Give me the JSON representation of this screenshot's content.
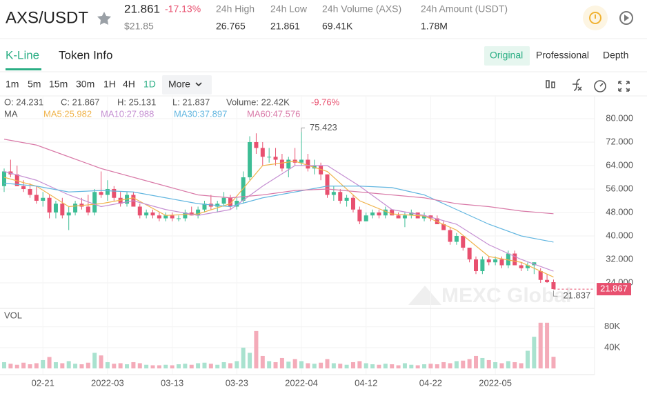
{
  "header": {
    "symbol": "AXS/USDT",
    "price": "21.861",
    "change": "-17.13%",
    "usd_price": "$21.85",
    "stats": [
      {
        "label": "24h High",
        "value": "26.765"
      },
      {
        "label": "24h Low",
        "value": "21.861"
      },
      {
        "label": "24h Volume (AXS)",
        "value": "69.41K"
      },
      {
        "label": "24h Amount (USDT)",
        "value": "1.78M"
      }
    ]
  },
  "tabs": [
    "K-Line",
    "Token Info"
  ],
  "views": [
    "Original",
    "Professional",
    "Depth"
  ],
  "intervals": [
    "1m",
    "5m",
    "15m",
    "30m",
    "1H",
    "4H",
    "1D"
  ],
  "more": "More",
  "chart_data": {
    "type": "candlestick",
    "info": [
      "O: 24.231",
      "C: 21.867",
      "H: 25.131",
      "L: 21.837",
      "Volume: 22.42K"
    ],
    "change_pct": "-9.76%",
    "ma_label": "MA",
    "vol_label": "VOL",
    "watermark": "MEXC Global",
    "up_color": "#3dbd95",
    "down_color": "#e8506f",
    "up_vol_color": "#a9e2cf",
    "down_vol_color": "#f4abb9",
    "categories": [
      null,
      null,
      null,
      null,
      null,
      null,
      "02-21",
      null,
      null,
      null,
      null,
      null,
      null,
      null,
      null,
      null,
      "2022-03",
      null,
      null,
      null,
      null,
      null,
      null,
      null,
      null,
      null,
      "03-13",
      null,
      null,
      null,
      null,
      null,
      null,
      null,
      null,
      null,
      "03-23",
      null,
      null,
      null,
      null,
      null,
      null,
      null,
      null,
      null,
      "2022-04",
      null,
      null,
      null,
      null,
      null,
      null,
      null,
      null,
      null,
      "04-12",
      null,
      null,
      null,
      null,
      null,
      null,
      null,
      null,
      null,
      "04-22",
      null,
      null,
      null,
      null,
      null,
      null,
      null,
      null,
      null,
      "2022-05",
      null,
      null,
      null,
      null,
      null,
      null,
      null,
      null,
      null
    ],
    "ohlc": [
      [
        57,
        63,
        55,
        62
      ],
      [
        62,
        66,
        60,
        61
      ],
      [
        61,
        64,
        57,
        57
      ],
      [
        57,
        59,
        55,
        56
      ],
      [
        56,
        58,
        53,
        54
      ],
      [
        54,
        57,
        51,
        52
      ],
      [
        52,
        55,
        50,
        53
      ],
      [
        53,
        54,
        46,
        48
      ],
      [
        48,
        52,
        46,
        51
      ],
      [
        51,
        53,
        46,
        47
      ],
      [
        47,
        50,
        42,
        48
      ],
      [
        48,
        52,
        47,
        51
      ],
      [
        51,
        53,
        49,
        50
      ],
      [
        50,
        54,
        47,
        48
      ],
      [
        48,
        56,
        47,
        55
      ],
      [
        55,
        62,
        53,
        54
      ],
      [
        54,
        59,
        52,
        56
      ],
      [
        56,
        57,
        52,
        53
      ],
      [
        53,
        55,
        50,
        51
      ],
      [
        51,
        55,
        50,
        54
      ],
      [
        54,
        55,
        50,
        50
      ],
      [
        50,
        51,
        46,
        47
      ],
      [
        47,
        49,
        46,
        48
      ],
      [
        48,
        49,
        46,
        47
      ],
      [
        47,
        48,
        45,
        46
      ],
      [
        46,
        48,
        45,
        47
      ],
      [
        47,
        48,
        45,
        46
      ],
      [
        46,
        47,
        45,
        46
      ],
      [
        46,
        49,
        45,
        48
      ],
      [
        48,
        50,
        47,
        47
      ],
      [
        47,
        50,
        46,
        49
      ],
      [
        49,
        52,
        48,
        51
      ],
      [
        51,
        54,
        49,
        50
      ],
      [
        50,
        52,
        48,
        51
      ],
      [
        51,
        55,
        50,
        53
      ],
      [
        53,
        54,
        49,
        50
      ],
      [
        50,
        53,
        49,
        52
      ],
      [
        52,
        62,
        51,
        60
      ],
      [
        60,
        74,
        59,
        72
      ],
      [
        72,
        75,
        68,
        70
      ],
      [
        70,
        72,
        64,
        67
      ],
      [
        67,
        70,
        65,
        67
      ],
      [
        67,
        70,
        64,
        66
      ],
      [
        66,
        68,
        62,
        63
      ],
      [
        63,
        67,
        60,
        66
      ],
      [
        66,
        70,
        64,
        65
      ],
      [
        65,
        75.423,
        64,
        66
      ],
      [
        66,
        68,
        62,
        63
      ],
      [
        63,
        66,
        61,
        64
      ],
      [
        64,
        65,
        59,
        61
      ],
      [
        61,
        61,
        53,
        54
      ],
      [
        54,
        57,
        52,
        55
      ],
      [
        55,
        56,
        51,
        52
      ],
      [
        52,
        54,
        50,
        53
      ],
      [
        53,
        54,
        48,
        49
      ],
      [
        49,
        50,
        44,
        45
      ],
      [
        45,
        48,
        45,
        47
      ],
      [
        47,
        49,
        46,
        48
      ],
      [
        48,
        49,
        46,
        47
      ],
      [
        47,
        50,
        46,
        49
      ],
      [
        49,
        49,
        47,
        47
      ],
      [
        47,
        48,
        46,
        46
      ],
      [
        46,
        48,
        43,
        47
      ],
      [
        47,
        49,
        46,
        48
      ],
      [
        48,
        48,
        46,
        46
      ],
      [
        46,
        48,
        45,
        47
      ],
      [
        47,
        47,
        45,
        46
      ],
      [
        46,
        47,
        44,
        44
      ],
      [
        44,
        45,
        42,
        42
      ],
      [
        42,
        43,
        37,
        38
      ],
      [
        38,
        41,
        37,
        40
      ],
      [
        40,
        40,
        35,
        36
      ],
      [
        36,
        36,
        31,
        32
      ],
      [
        32,
        33,
        27,
        28
      ],
      [
        28,
        33,
        27,
        32
      ],
      [
        32,
        33,
        30,
        31
      ],
      [
        31,
        33,
        30,
        32
      ],
      [
        32,
        33,
        29,
        30
      ],
      [
        30,
        35,
        29,
        34
      ],
      [
        34,
        35,
        30,
        30
      ],
      [
        30,
        31,
        28,
        29
      ],
      [
        29,
        31,
        28,
        30
      ],
      [
        30,
        31,
        27,
        31
      ],
      [
        28,
        29,
        24,
        25
      ],
      [
        25,
        27,
        24,
        24.231
      ],
      [
        24.231,
        25.131,
        21.837,
        21.867
      ]
    ],
    "volume": [
      12000,
      9000,
      7000,
      11000,
      8000,
      10000,
      16000,
      22000,
      12000,
      10000,
      14000,
      9000,
      8000,
      11000,
      30000,
      25000,
      12000,
      9000,
      10000,
      8000,
      12000,
      10000,
      7000,
      6000,
      6000,
      7000,
      6000,
      8000,
      9000,
      7000,
      10000,
      11000,
      9000,
      7000,
      12000,
      10000,
      14000,
      40000,
      30000,
      72000,
      24000,
      14000,
      12000,
      20000,
      13000,
      18000,
      14000,
      10000,
      9000,
      11000,
      18000,
      10000,
      9000,
      7000,
      12000,
      14000,
      10000,
      8000,
      7000,
      9000,
      8000,
      6000,
      10000,
      7000,
      6000,
      8000,
      9000,
      8000,
      12000,
      10000,
      14000,
      15000,
      18000,
      24000,
      20000,
      16000,
      12000,
      10000,
      14000,
      12000,
      10000,
      34000,
      61000,
      88000,
      88000,
      22420
    ],
    "ma": [
      {
        "name": "MA5:25.982",
        "color": "#f0b44c",
        "x": [
          0,
          5,
          10,
          15,
          20,
          25,
          30,
          35,
          40,
          45,
          50,
          55,
          60,
          65,
          70,
          75,
          80,
          85
        ],
        "values": [
          60,
          57,
          50,
          51,
          53,
          47,
          47.5,
          51,
          64,
          65.5,
          62,
          52,
          47.5,
          46.8,
          42,
          33,
          31,
          25.982
        ]
      },
      {
        "name": "MA10:27.988",
        "color": "#c58fd2",
        "x": [
          0,
          5,
          10,
          15,
          20,
          25,
          30,
          35,
          40,
          45,
          50,
          55,
          60,
          65,
          70,
          75,
          80,
          85
        ],
        "values": [
          62,
          59,
          54,
          50,
          52,
          49,
          47,
          49,
          57,
          64,
          64,
          57,
          49,
          47,
          44,
          37,
          32,
          27.988
        ]
      },
      {
        "name": "MA30:37.897",
        "color": "#62b6e0",
        "x": [
          0,
          5,
          10,
          15,
          20,
          25,
          30,
          35,
          40,
          45,
          50,
          55,
          60,
          65,
          70,
          75,
          80,
          85
        ],
        "values": [
          58,
          57,
          55,
          55.5,
          55,
          53,
          51,
          50,
          53,
          55,
          57,
          57,
          56.5,
          54,
          49,
          44,
          40,
          37.897
        ]
      },
      {
        "name": "MA60:47.576",
        "color": "#d97aa8",
        "x": [
          0,
          5,
          10,
          15,
          20,
          25,
          30,
          35,
          40,
          45,
          50,
          55,
          60,
          65,
          70,
          75,
          80,
          85
        ],
        "values": [
          73,
          71,
          67,
          63,
          60,
          57,
          54,
          53,
          54,
          55.5,
          56,
          55,
          54,
          53,
          51,
          50,
          48.5,
          47.576
        ]
      }
    ],
    "ylim": [
      16,
      88
    ],
    "yticks": [
      {
        "value": 24,
        "label": "24.000"
      },
      {
        "value": 32,
        "label": "32.000"
      },
      {
        "value": 40,
        "label": "40.000"
      },
      {
        "value": 48,
        "label": "48.000"
      },
      {
        "value": 56,
        "label": "56.000"
      },
      {
        "value": 64,
        "label": "64.000"
      },
      {
        "value": 72,
        "label": "72.000"
      },
      {
        "value": 80,
        "label": "80.000"
      }
    ],
    "vol_ylim": [
      0,
      105000
    ],
    "vol_yticks": [
      {
        "value": 40000,
        "label": "40K"
      },
      {
        "value": 80000,
        "label": "80K"
      }
    ],
    "grid": true
  }
}
